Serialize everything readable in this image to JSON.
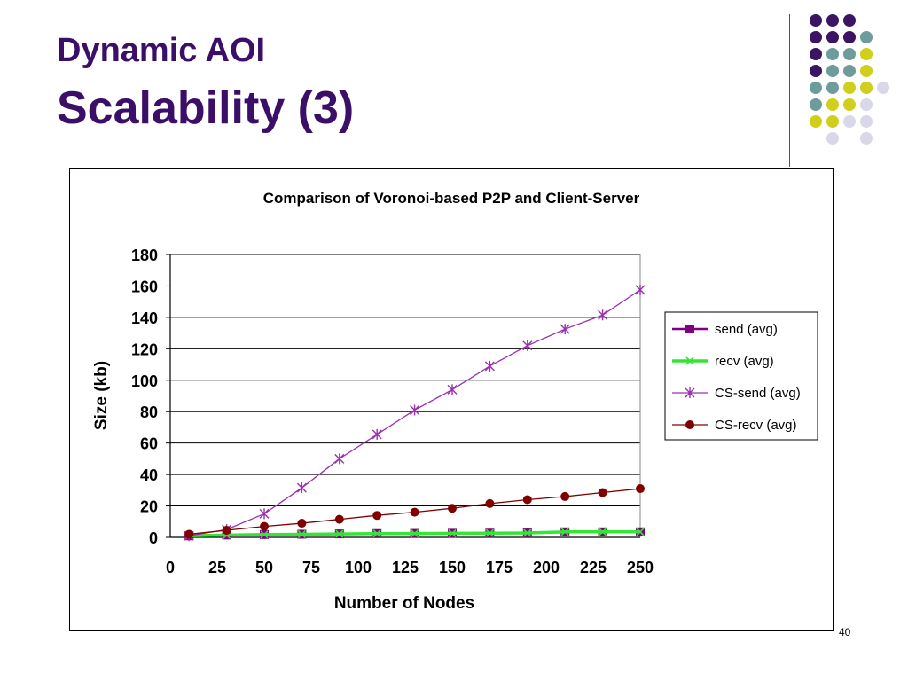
{
  "slide": {
    "title_line1": "Dynamic AOI",
    "title_line2": "Scalability (3)",
    "page_number": "40",
    "title_color": "#3b0f68"
  },
  "decoration": {
    "palette": [
      "#3b1464",
      "#6e9c9c",
      "#cfcf1c",
      "#d8d8e8"
    ]
  },
  "chart_data": {
    "type": "line",
    "title": "Comparison of Voronoi-based P2P and Client-Server",
    "xlabel": "Number of Nodes",
    "ylabel": "Size (kb)",
    "xlim": [
      0,
      250
    ],
    "ylim": [
      0,
      180
    ],
    "xticks": [
      0,
      25,
      50,
      75,
      100,
      125,
      150,
      175,
      200,
      225,
      250
    ],
    "yticks": [
      0,
      20,
      40,
      60,
      80,
      100,
      120,
      140,
      160,
      180
    ],
    "grid": "horizontal",
    "legend_position": "right",
    "x": [
      10,
      30,
      50,
      70,
      90,
      110,
      130,
      150,
      170,
      190,
      210,
      230,
      250
    ],
    "series": [
      {
        "name": "send (avg)",
        "color": "#800080",
        "marker": "square",
        "values": [
          1,
          1.5,
          1.8,
          2,
          2.2,
          2.4,
          2.5,
          2.6,
          2.7,
          2.8,
          3.5,
          3.5,
          3.5
        ]
      },
      {
        "name": "recv (avg)",
        "color": "#33e633",
        "marker": "x",
        "values": [
          1,
          1.5,
          1.8,
          2,
          2.2,
          2.4,
          2.5,
          2.6,
          2.7,
          2.8,
          3.5,
          3.5,
          3.5
        ]
      },
      {
        "name": "CS-send (avg)",
        "color": "#9a30b0",
        "marker": "star",
        "values": [
          1,
          5,
          15,
          31.5,
          50,
          65.5,
          81,
          94,
          109,
          122,
          132.5,
          141.5,
          157.5
        ]
      },
      {
        "name": "CS-recv (avg)",
        "color": "#800000",
        "marker": "circle",
        "values": [
          2,
          4.5,
          7,
          9,
          11.5,
          14,
          16,
          18.5,
          21.5,
          24,
          26,
          28.5,
          31
        ]
      }
    ]
  }
}
